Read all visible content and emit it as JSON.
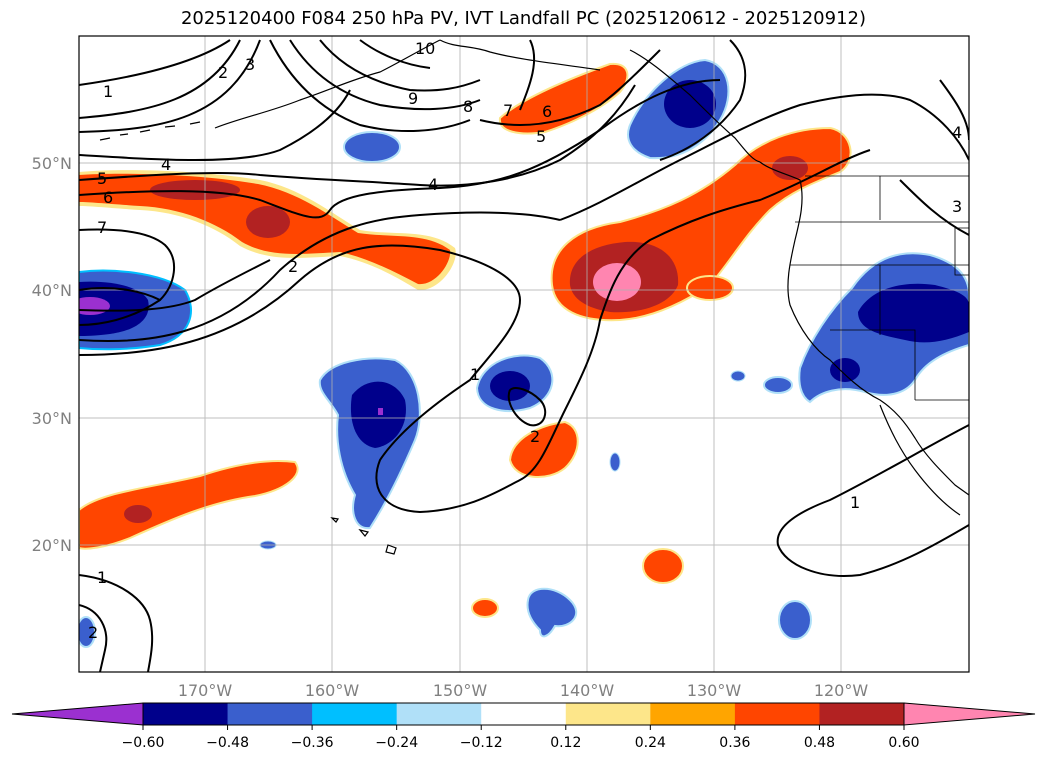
{
  "title": "2025120400 F084 250 hPa PV, IVT Landfall PC (2025120612 - 2025120912)",
  "lat_labels": [
    "50°N",
    "40°N",
    "30°N",
    "20°N"
  ],
  "lon_labels": [
    "170°W",
    "160°W",
    "150°W",
    "140°W",
    "130°W",
    "120°W"
  ],
  "contour_labels": [
    "10",
    "9",
    "8",
    "7",
    "6",
    "5",
    "4",
    "4",
    "5",
    "6",
    "7",
    "3",
    "2",
    "1",
    "2",
    "1",
    "2",
    "1",
    "1",
    "3",
    "4",
    "2"
  ],
  "colorbar": {
    "ticks": [
      "−0.60",
      "−0.48",
      "−0.36",
      "−0.24",
      "−0.12",
      "0.12",
      "0.24",
      "0.36",
      "0.48",
      "0.60"
    ],
    "colors": [
      "#9b30d0",
      "#00008b",
      "#3a5fcd",
      "#00bfff",
      "#b0e0f8",
      "#ffffff",
      "#fde68a",
      "#ffa500",
      "#ff4500",
      "#b22222",
      "#ff85b0"
    ]
  },
  "colors": {
    "neg_light": "#b0e0f8",
    "neg_cyan": "#00bfff",
    "neg_mid": "#3a5fcd",
    "neg_dark": "#00008b",
    "neg_extreme": "#9b30d0",
    "pos_light": "#fde68a",
    "pos_orange": "#ffa500",
    "pos_red": "#ff4500",
    "pos_dark": "#b22222",
    "pos_extreme": "#ff85b0"
  }
}
